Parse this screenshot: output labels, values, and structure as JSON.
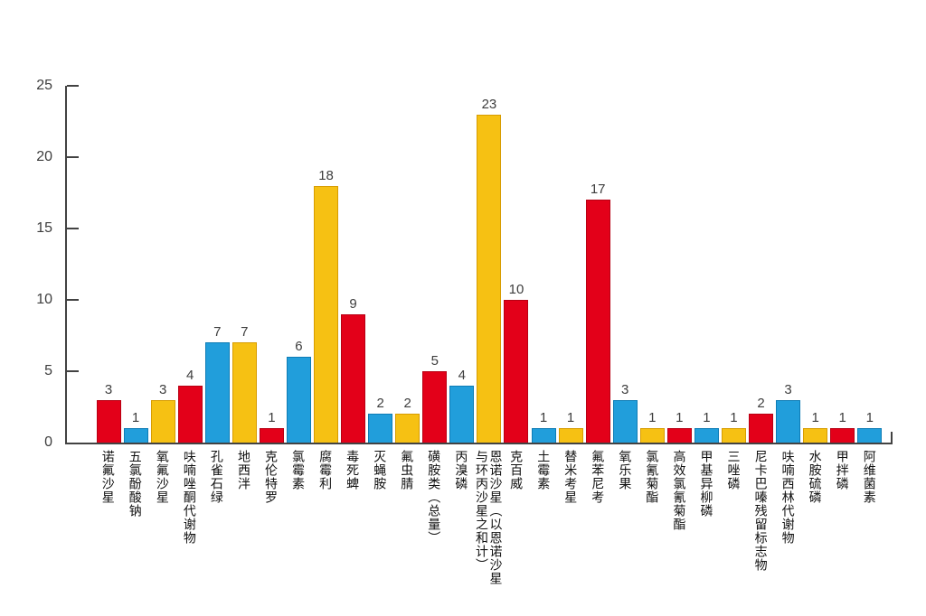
{
  "chart_data": {
    "type": "bar",
    "title": "",
    "xlabel": "",
    "ylabel": "",
    "ylim": [
      0,
      25
    ],
    "yticks": [
      0,
      5,
      10,
      15,
      20,
      25
    ],
    "grid": false,
    "legend": null,
    "categories": [
      "诺氟沙星",
      "五氯酚酸钠",
      "氧氟沙星",
      "呋喃唑酮代谢物",
      "孔雀石绿",
      "地西泮",
      "克伦特罗",
      "氯霉素",
      "腐霉利",
      "毒死蜱",
      "灭蝇胺",
      "氟虫腈",
      "磺胺类（总量）",
      "丙溴磷",
      "恩诺沙星（以恩诺沙星\n与环丙沙星之和计）",
      "克百威",
      "土霉素",
      "替米考星",
      "氟苯尼考",
      "氧乐果",
      "氯氰菊酯",
      "高效氯氰菊酯",
      "甲基异柳磷",
      "三唑磷",
      "尼卡巴嗪残留标志物",
      "呋喃西林代谢物",
      "水胺硫磷",
      "甲拌磷",
      "阿维菌素"
    ],
    "values": [
      3,
      1,
      3,
      4,
      7,
      7,
      1,
      6,
      18,
      9,
      2,
      2,
      5,
      4,
      23,
      10,
      1,
      1,
      17,
      3,
      1,
      1,
      1,
      1,
      2,
      3,
      1,
      1,
      1
    ],
    "bar_colors": [
      "red",
      "blue",
      "yellow",
      "red",
      "blue",
      "yellow",
      "red",
      "blue",
      "yellow",
      "red",
      "blue",
      "yellow",
      "red",
      "blue",
      "yellow",
      "red",
      "blue",
      "yellow",
      "red",
      "blue",
      "yellow",
      "red",
      "blue",
      "yellow",
      "red",
      "blue",
      "yellow",
      "red",
      "blue"
    ]
  },
  "palette": {
    "red": {
      "fill": "#e30019",
      "stroke": "#b80013"
    },
    "blue": {
      "fill": "#219edb",
      "stroke": "#0e7cb5"
    },
    "yellow": {
      "fill": "#f6c113",
      "stroke": "#d79c00"
    }
  },
  "axis": {
    "color": "#424242",
    "background": "#ffffff"
  }
}
